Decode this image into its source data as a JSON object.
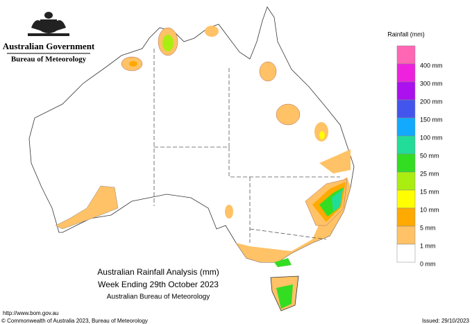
{
  "header": {
    "agency": "Australian Government",
    "bureau": "Bureau of Meteorology"
  },
  "legend": {
    "title": "Rainfall (mm)",
    "items": [
      {
        "label": "400 mm",
        "color": "#ff66b3"
      },
      {
        "label": "300 mm",
        "color": "#ee22dd"
      },
      {
        "label": "200 mm",
        "color": "#aa11ee"
      },
      {
        "label": "150 mm",
        "color": "#4455ee"
      },
      {
        "label": "100 mm",
        "color": "#11aaff"
      },
      {
        "label": "50 mm",
        "color": "#22dd99"
      },
      {
        "label": "25 mm",
        "color": "#33dd22"
      },
      {
        "label": "15 mm",
        "color": "#aaee11"
      },
      {
        "label": "10 mm",
        "color": "#ffff00"
      },
      {
        "label": "5 mm",
        "color": "#ffaa00"
      },
      {
        "label": "1 mm",
        "color": "#ffc266"
      },
      {
        "label": "0 mm",
        "color": "#ffffff"
      }
    ]
  },
  "map_title": {
    "line1": "Australian Rainfall Analysis (mm)",
    "line2": "Week Ending 29th October 2023",
    "line3": "Australian Bureau of Meteorology"
  },
  "footer": {
    "url": "http://www.bom.gov.au",
    "copyright": "© Commonwealth of Australia 2023, Bureau of Meteorology",
    "issued": "Issued: 29/10/2023"
  }
}
